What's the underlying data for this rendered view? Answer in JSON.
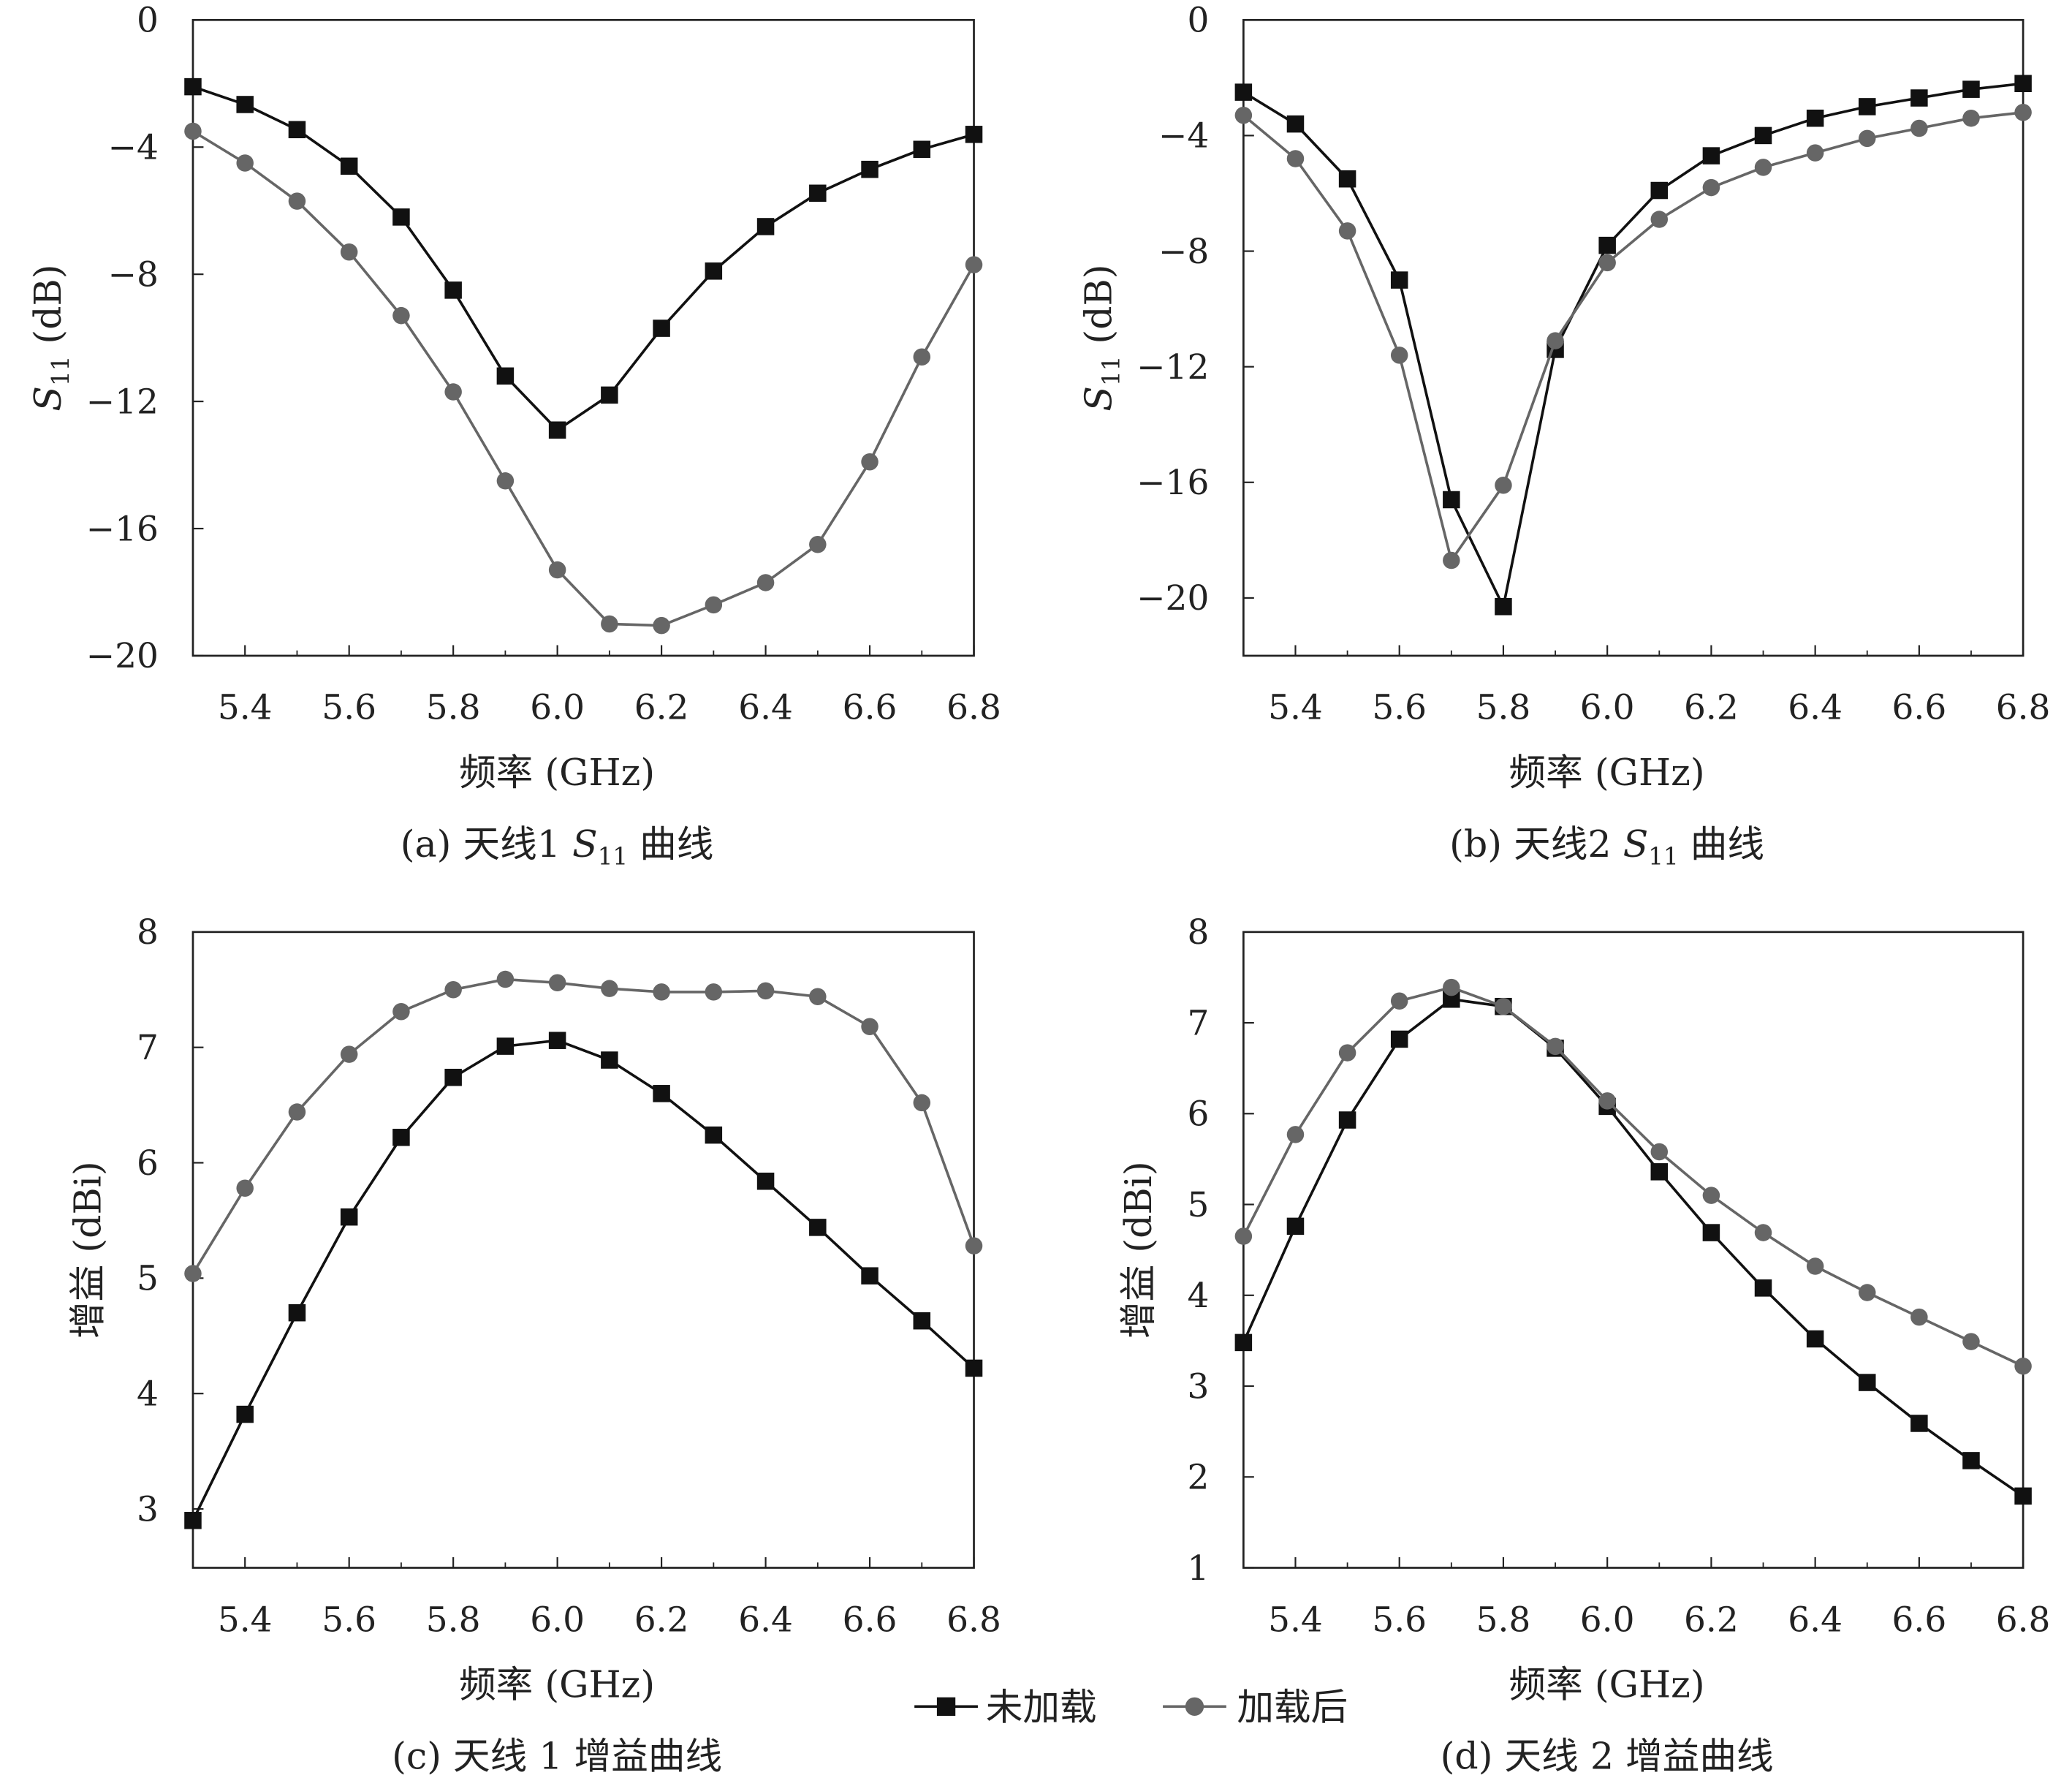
{
  "legend": {
    "series_a": "未加载",
    "series_b": "加载后"
  },
  "colors": {
    "series_a": "#111111",
    "series_b": "#666666"
  },
  "chart_data": [
    {
      "type": "line",
      "panel": "a",
      "caption": {
        "prefix": "(a) 天线1 ",
        "sym": "S",
        "sub": "11",
        "suffix": " 曲线"
      },
      "xlabel": "频率 (GHz)",
      "ylabel": {
        "sym": "S",
        "sub": "11",
        "unit": " (dB)"
      },
      "xlim": [
        5.3,
        6.8
      ],
      "ylim": [
        -20,
        0
      ],
      "xticks": [
        5.4,
        5.6,
        5.8,
        6.0,
        6.2,
        6.4,
        6.6,
        6.8
      ],
      "xtick_labels": [
        "5.4",
        "5.6",
        "5.8",
        "6.0",
        "6.2",
        "6.4",
        "6.6",
        "6.8"
      ],
      "yticks": [
        0,
        -4,
        -8,
        -12,
        -16,
        -20
      ],
      "ytick_labels": [
        "0",
        "−4",
        "−8",
        "−12",
        "−16",
        "−20"
      ],
      "x": [
        5.3,
        5.4,
        5.5,
        5.6,
        5.7,
        5.8,
        5.9,
        6.0,
        6.1,
        6.2,
        6.3,
        6.4,
        6.5,
        6.6,
        6.7,
        6.8
      ],
      "series": [
        {
          "name": "未加载",
          "marker": "square",
          "values": [
            -2.1,
            -2.66,
            -3.45,
            -4.6,
            -6.2,
            -8.5,
            -11.2,
            -12.9,
            -11.8,
            -9.7,
            -7.9,
            -6.5,
            -5.45,
            -4.7,
            -4.07,
            -3.6
          ]
        },
        {
          "name": "加载后",
          "marker": "circle",
          "values": [
            -3.5,
            -4.5,
            -5.7,
            -7.3,
            -9.3,
            -11.7,
            -14.5,
            -17.3,
            -19.0,
            -19.05,
            -18.4,
            -17.7,
            -16.5,
            -13.9,
            -10.6,
            -7.7
          ]
        }
      ]
    },
    {
      "type": "line",
      "panel": "b",
      "caption": {
        "prefix": "(b) 天线2 ",
        "sym": "S",
        "sub": "11",
        "suffix": " 曲线"
      },
      "xlabel": "频率 (GHz)",
      "ylabel": {
        "sym": "S",
        "sub": "11",
        "unit": " (dB)"
      },
      "xlim": [
        5.3,
        6.8
      ],
      "ylim": [
        -22,
        0
      ],
      "xticks": [
        5.4,
        5.6,
        5.8,
        6.0,
        6.2,
        6.4,
        6.6,
        6.8
      ],
      "xtick_labels": [
        "5.4",
        "5.6",
        "5.8",
        "6.0",
        "6.2",
        "6.4",
        "6.6",
        "6.8"
      ],
      "yticks": [
        0,
        -4,
        -8,
        -12,
        -16,
        -20
      ],
      "ytick_labels": [
        "0",
        "−4",
        "−8",
        "−12",
        "−16",
        "−20"
      ],
      "x": [
        5.3,
        5.4,
        5.5,
        5.6,
        5.7,
        5.8,
        5.9,
        6.0,
        6.1,
        6.2,
        6.3,
        6.4,
        6.5,
        6.6,
        6.7,
        6.8
      ],
      "series": [
        {
          "name": "未加载",
          "marker": "square",
          "values": [
            -2.5,
            -3.6,
            -5.5,
            -9.0,
            -16.6,
            -20.3,
            -11.4,
            -7.8,
            -5.9,
            -4.7,
            -4.0,
            -3.4,
            -3.0,
            -2.7,
            -2.4,
            -2.2
          ]
        },
        {
          "name": "加载后",
          "marker": "circle",
          "values": [
            -3.3,
            -4.8,
            -7.3,
            -11.6,
            -18.7,
            -16.1,
            -11.1,
            -8.4,
            -6.9,
            -5.8,
            -5.1,
            -4.6,
            -4.1,
            -3.75,
            -3.4,
            -3.2
          ]
        }
      ]
    },
    {
      "type": "line",
      "panel": "c",
      "caption": {
        "prefix": "(c) 天线 1 增益曲线",
        "sym": "",
        "sub": "",
        "suffix": ""
      },
      "xlabel": "频率 (GHz)",
      "ylabel": {
        "sym": "",
        "sub": "",
        "unit": "增益 (dBi)"
      },
      "xlim": [
        5.3,
        6.8
      ],
      "ylim": [
        2.49,
        8
      ],
      "xticks": [
        5.4,
        5.6,
        5.8,
        6.0,
        6.2,
        6.4,
        6.6,
        6.8
      ],
      "xtick_labels": [
        "5.4",
        "5.6",
        "5.8",
        "6.0",
        "6.2",
        "6.4",
        "6.6",
        "6.8"
      ],
      "yticks": [
        8,
        7,
        6,
        5,
        4,
        3
      ],
      "ytick_labels": [
        "8",
        "7",
        "6",
        "5",
        "4",
        "3"
      ],
      "x": [
        5.3,
        5.4,
        5.5,
        5.6,
        5.7,
        5.8,
        5.9,
        6.0,
        6.1,
        6.2,
        6.3,
        6.4,
        6.5,
        6.6,
        6.7,
        6.8
      ],
      "series": [
        {
          "name": "未加载",
          "marker": "square",
          "values": [
            2.9,
            3.82,
            4.7,
            5.53,
            6.22,
            6.74,
            7.01,
            7.06,
            6.89,
            6.6,
            6.24,
            5.84,
            5.44,
            5.02,
            4.63,
            4.22
          ]
        },
        {
          "name": "加载后",
          "marker": "circle",
          "values": [
            5.04,
            5.78,
            6.44,
            6.94,
            7.31,
            7.5,
            7.59,
            7.56,
            7.51,
            7.48,
            7.48,
            7.49,
            7.44,
            7.18,
            6.52,
            5.28
          ]
        }
      ]
    },
    {
      "type": "line",
      "panel": "d",
      "caption": {
        "prefix": "(d) 天线 2 增益曲线",
        "sym": "",
        "sub": "",
        "suffix": ""
      },
      "xlabel": "频率 (GHz)",
      "ylabel": {
        "sym": "",
        "sub": "",
        "unit": "增益 (dBi)"
      },
      "xlim": [
        5.3,
        6.8
      ],
      "ylim": [
        1,
        8
      ],
      "xticks": [
        5.4,
        5.6,
        5.8,
        6.0,
        6.2,
        6.4,
        6.6,
        6.8
      ],
      "xtick_labels": [
        "5.4",
        "5.6",
        "5.8",
        "6.0",
        "6.2",
        "6.4",
        "6.6",
        "6.8"
      ],
      "yticks": [
        8,
        7,
        6,
        5,
        4,
        3,
        2,
        1
      ],
      "ytick_labels": [
        "8",
        "7",
        "6",
        "5",
        "4",
        "3",
        "2",
        "1"
      ],
      "x": [
        5.3,
        5.4,
        5.5,
        5.6,
        5.7,
        5.8,
        5.9,
        6.0,
        6.1,
        6.2,
        6.3,
        6.4,
        6.5,
        6.6,
        6.7,
        6.8
      ],
      "series": [
        {
          "name": "未加载",
          "marker": "square",
          "values": [
            3.48,
            4.76,
            5.93,
            6.82,
            7.26,
            7.18,
            6.72,
            6.08,
            5.36,
            4.69,
            4.08,
            3.52,
            3.04,
            2.59,
            2.18,
            1.79
          ]
        },
        {
          "name": "加载后",
          "marker": "circle",
          "values": [
            4.65,
            5.77,
            6.67,
            7.24,
            7.39,
            7.18,
            6.74,
            6.14,
            5.58,
            5.1,
            4.69,
            4.32,
            4.03,
            3.76,
            3.49,
            3.22
          ]
        }
      ]
    }
  ]
}
